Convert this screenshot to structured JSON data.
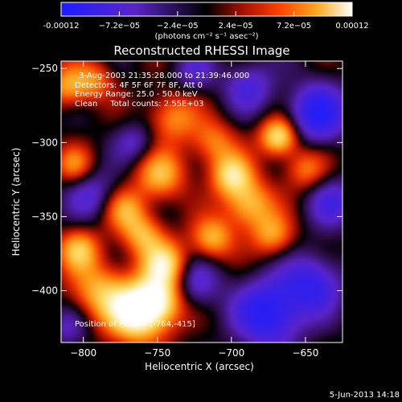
{
  "chart_data": {
    "type": "heatmap",
    "title": "Reconstructed RHESSI Image",
    "xlabel": "Heliocentric X (arcsec)",
    "ylabel": "Heliocentric Y (arcsec)",
    "xlim": [
      -815,
      -625
    ],
    "ylim": [
      -435,
      -245
    ],
    "x_ticks": [
      -800,
      -750,
      -700,
      -650
    ],
    "y_ticks": [
      -250,
      -300,
      -350,
      -400
    ],
    "colorbar": {
      "range": [
        -0.00012,
        0.00012
      ],
      "tick_values": [
        -0.00012,
        -7.2e-05,
        -2.4e-05,
        2.4e-05,
        7.2e-05,
        0.00012
      ],
      "tick_labels": [
        "-0.00012",
        "−7.2e−05",
        "−2.4e−05",
        "2.4e−05",
        "7.2e−05",
        "0.00012"
      ],
      "unit_label": "(photons cm⁻² s⁻¹ asec⁻²)"
    },
    "info_lines": [
      "3-Aug-2003 21:35:28.000 to 21:39:46.000",
      "Detectors: 4F 5F 6F 7F 8F, Att 0",
      "Energy Range: 25.0 - 50.0 keV",
      "Clean     Total counts: 2.55E+03"
    ],
    "peak_label": "Position of Peak = [-764,-415]",
    "peak_position": [
      -764,
      -415
    ],
    "blobs": [
      {
        "x": -764,
        "y": -415,
        "v": 1.0,
        "r": 14
      },
      {
        "x": -748,
        "y": -406,
        "v": 0.7,
        "r": 12
      },
      {
        "x": -790,
        "y": -400,
        "v": 0.55,
        "r": 14
      },
      {
        "x": -745,
        "y": -382,
        "v": 0.75,
        "r": 11
      },
      {
        "x": -760,
        "y": -362,
        "v": 0.55,
        "r": 10
      },
      {
        "x": -772,
        "y": -345,
        "v": 0.5,
        "r": 10
      },
      {
        "x": -803,
        "y": -372,
        "v": 0.6,
        "r": 10
      },
      {
        "x": -748,
        "y": -322,
        "v": 0.6,
        "r": 12
      },
      {
        "x": -740,
        "y": -283,
        "v": 0.5,
        "r": 12
      },
      {
        "x": -712,
        "y": -300,
        "v": 0.45,
        "r": 11
      },
      {
        "x": -700,
        "y": -322,
        "v": 0.7,
        "r": 10
      },
      {
        "x": -688,
        "y": -342,
        "v": 0.65,
        "r": 12
      },
      {
        "x": -713,
        "y": -365,
        "v": 0.6,
        "r": 10
      },
      {
        "x": -672,
        "y": -363,
        "v": 0.5,
        "r": 10
      },
      {
        "x": -668,
        "y": -296,
        "v": 0.85,
        "r": 9
      },
      {
        "x": -650,
        "y": -318,
        "v": 0.45,
        "r": 10
      },
      {
        "x": -810,
        "y": -262,
        "v": 0.55,
        "r": 10
      },
      {
        "x": -806,
        "y": -315,
        "v": 0.45,
        "r": 9
      },
      {
        "x": -792,
        "y": -258,
        "v": 0.4,
        "r": 9
      },
      {
        "x": -642,
        "y": -280,
        "v": -0.75,
        "r": 14
      },
      {
        "x": -632,
        "y": -340,
        "v": -0.45,
        "r": 12
      },
      {
        "x": -675,
        "y": -415,
        "v": -0.8,
        "r": 16
      },
      {
        "x": -645,
        "y": -395,
        "v": -0.6,
        "r": 14
      },
      {
        "x": -688,
        "y": -262,
        "v": -0.45,
        "r": 12
      },
      {
        "x": -725,
        "y": -395,
        "v": -0.45,
        "r": 12
      },
      {
        "x": -795,
        "y": -335,
        "v": -0.4,
        "r": 12
      },
      {
        "x": -725,
        "y": -252,
        "v": -0.35,
        "r": 10
      },
      {
        "x": -765,
        "y": -300,
        "v": -0.35,
        "r": 10
      },
      {
        "x": -810,
        "y": -425,
        "v": -0.3,
        "r": 10
      }
    ]
  },
  "footer": {
    "date": "5-Jun-2013 14:18"
  }
}
